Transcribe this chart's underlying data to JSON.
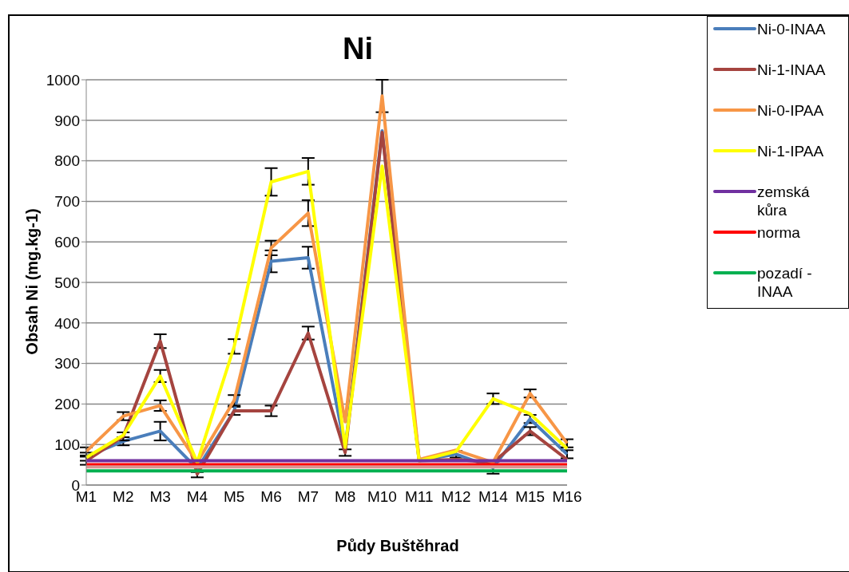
{
  "chart_data": {
    "type": "line",
    "title": "Ni",
    "xlabel": "Půdy Buštěhrad",
    "ylabel": "Obsah Ni (mg.kg-1)",
    "categories": [
      "M1",
      "M2",
      "M3",
      "M4",
      "M5",
      "M6",
      "M7",
      "M8",
      "M10",
      "M11",
      "M12",
      "M14",
      "M15",
      "M16"
    ],
    "ylim": [
      0,
      1000
    ],
    "yticks": [
      0,
      100,
      200,
      300,
      400,
      500,
      600,
      700,
      800,
      900,
      1000
    ],
    "grid": "y",
    "legend": "top right",
    "marker": "none",
    "line_style": "solid",
    "series": [
      {
        "name": "Ni-0-INAA",
        "color": "#4a7ebb",
        "values": [
          70,
          108,
          133,
          40,
          183,
          552,
          561,
          90,
          874,
          60,
          76,
          43,
          163,
          76
        ],
        "errors": [
          10,
          10,
          23,
          8,
          10,
          27,
          27,
          null,
          null,
          null,
          8,
          15,
          10,
          10
        ]
      },
      {
        "name": "Ni-1-INAA",
        "color": "#a5443f",
        "values": [
          60,
          120,
          355,
          27,
          183,
          183,
          375,
          80,
          870,
          60,
          63,
          56,
          133,
          63
        ],
        "errors": [
          10,
          10,
          17,
          8,
          null,
          13,
          16,
          8,
          null,
          null,
          null,
          null,
          10,
          null
        ]
      },
      {
        "name": "Ni-0-IPAA",
        "color": "#f79646",
        "values": [
          83,
          170,
          196,
          56,
          209,
          585,
          671,
          156,
          960,
          63,
          86,
          56,
          226,
          103
        ],
        "errors": [
          10,
          10,
          13,
          null,
          13,
          18,
          32,
          null,
          40,
          null,
          null,
          null,
          10,
          10
        ]
      },
      {
        "name": "Ni-1-IPAA",
        "color": "#ffff00",
        "values": [
          68,
          123,
          269,
          56,
          342,
          748,
          774,
          93,
          787,
          60,
          83,
          213,
          176,
          90
        ],
        "errors": [
          null,
          null,
          15,
          null,
          18,
          34,
          33,
          null,
          null,
          null,
          null,
          13,
          null,
          null
        ]
      },
      {
        "name": "zemská kůra",
        "color": "#7030a0",
        "values": [
          60,
          60,
          60,
          60,
          60,
          60,
          60,
          60,
          60,
          60,
          60,
          60,
          60,
          60
        ]
      },
      {
        "name": "norma",
        "color": "#ff0000",
        "values": [
          50,
          50,
          50,
          50,
          50,
          50,
          50,
          50,
          50,
          50,
          50,
          50,
          50,
          50
        ]
      },
      {
        "color": "#d99694",
        "values": [
          45,
          45,
          45,
          45,
          45,
          45,
          45,
          45,
          45,
          45,
          45,
          45,
          45,
          45
        ]
      },
      {
        "name": "pozadí - INAA",
        "color": "#00b050",
        "values": [
          35,
          35,
          35,
          35,
          35,
          35,
          35,
          35,
          35,
          35,
          35,
          35,
          35,
          35
        ]
      }
    ]
  }
}
